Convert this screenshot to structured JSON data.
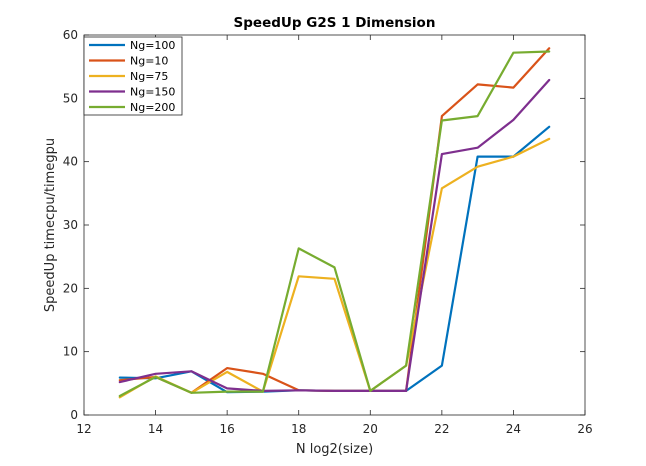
{
  "chart_data": {
    "type": "line",
    "title": "SpeedUp G2S 1 Dimension",
    "xlabel": "N log2(size)",
    "ylabel": "SpeedUp timecpu/timegpu",
    "xlim": [
      12,
      26
    ],
    "ylim": [
      0,
      60
    ],
    "xticks": [
      12,
      14,
      16,
      18,
      20,
      22,
      24,
      26
    ],
    "yticks": [
      0,
      10,
      20,
      30,
      40,
      50,
      60
    ],
    "grid": false,
    "legend_position": "top-left",
    "x": [
      13,
      14,
      15,
      16,
      17,
      18,
      19,
      20,
      21,
      22,
      23,
      24,
      25
    ],
    "series": [
      {
        "name": "Ng=100",
        "color": "#0072BD",
        "values": [
          5.9,
          5.8,
          6.9,
          3.6,
          3.7,
          3.9,
          3.8,
          3.8,
          3.8,
          7.8,
          40.8,
          40.8,
          45.5
        ]
      },
      {
        "name": "Ng=10",
        "color": "#D95319",
        "values": [
          5.5,
          6.0,
          3.5,
          7.4,
          6.5,
          3.9,
          3.8,
          3.8,
          3.8,
          47.2,
          52.2,
          51.7,
          57.9
        ]
      },
      {
        "name": "Ng=75",
        "color": "#EDB120",
        "values": [
          2.8,
          6.1,
          3.5,
          6.8,
          3.7,
          21.9,
          21.5,
          3.8,
          7.8,
          35.8,
          39.2,
          40.8,
          43.6
        ]
      },
      {
        "name": "Ng=150",
        "color": "#7E2F8E",
        "values": [
          5.2,
          6.5,
          6.9,
          4.2,
          3.8,
          3.9,
          3.8,
          3.8,
          3.8,
          41.2,
          42.2,
          46.6,
          52.9
        ]
      },
      {
        "name": "Ng=200",
        "color": "#77AC30",
        "values": [
          3.0,
          6.0,
          3.5,
          3.7,
          3.7,
          26.3,
          23.3,
          3.8,
          7.8,
          46.5,
          47.2,
          57.2,
          57.4
        ]
      }
    ]
  }
}
